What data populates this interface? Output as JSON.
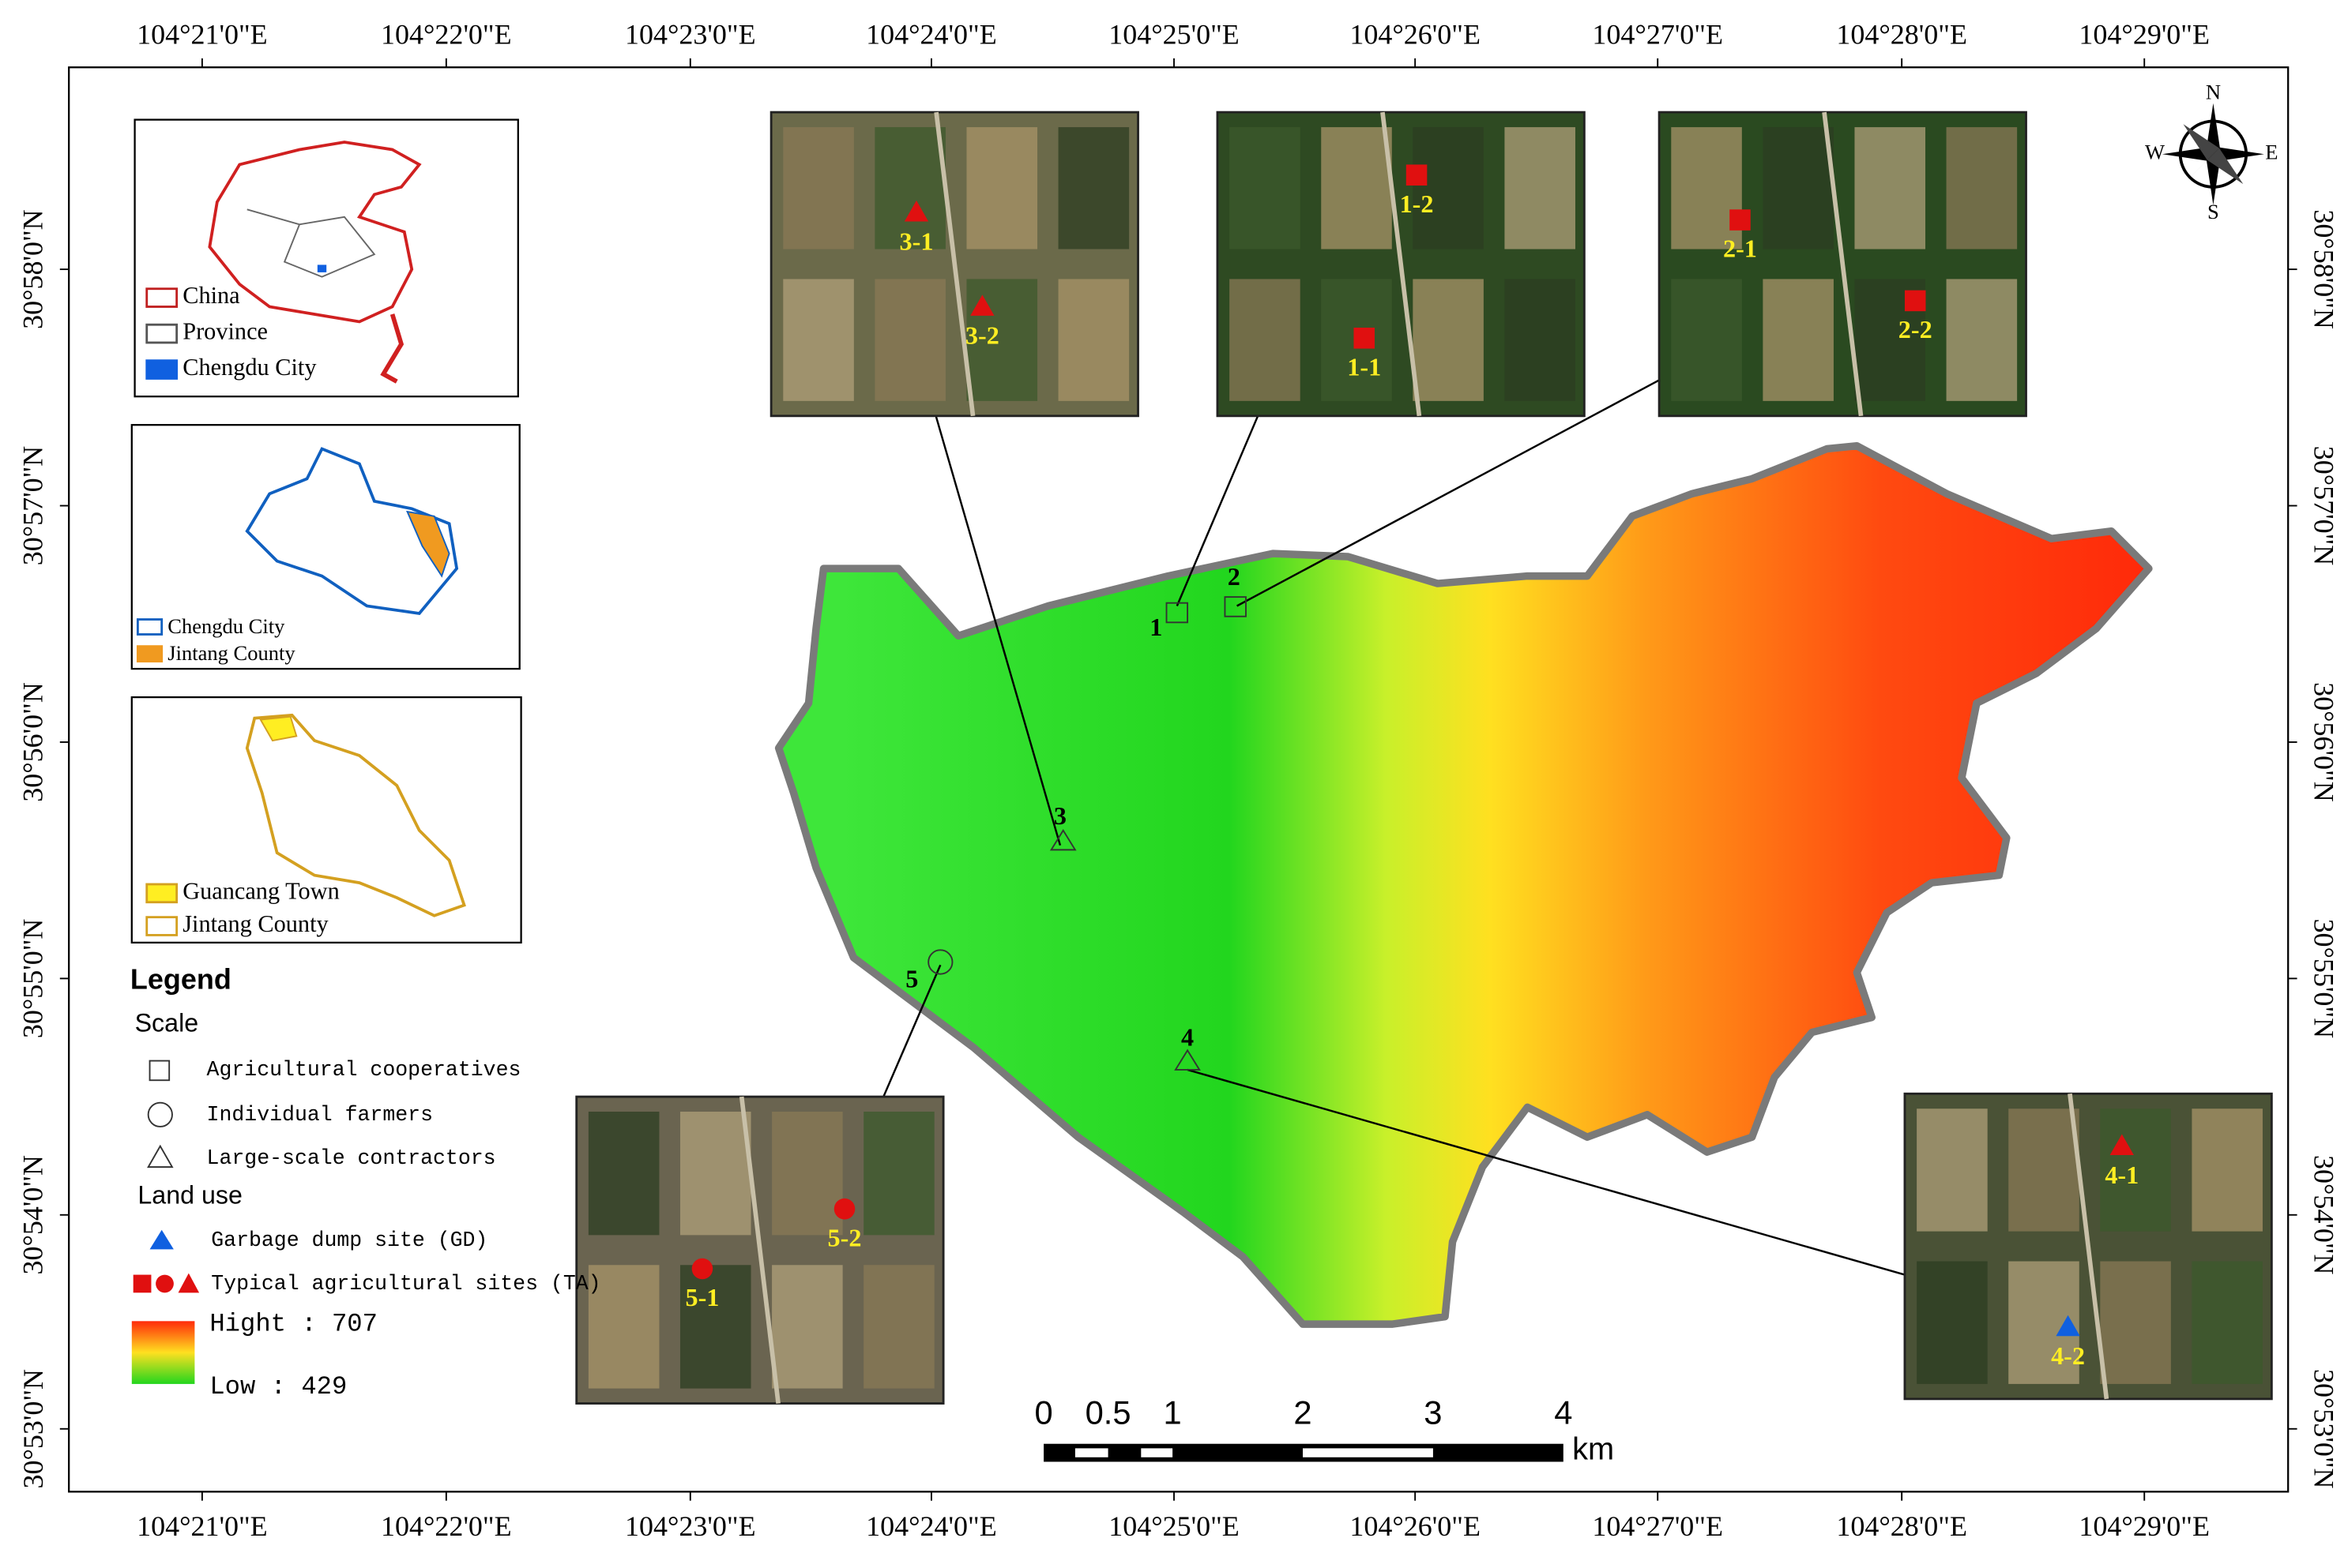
{
  "frame": {
    "lon_labels": [
      "104°21'0\"E",
      "104°22'0\"E",
      "104°23'0\"E",
      "104°24'0\"E",
      "104°25'0\"E",
      "104°26'0\"E",
      "104°27'0\"E",
      "104°28'0\"E",
      "104°29'0\"E"
    ],
    "lat_labels": [
      "30°58'0\"N",
      "30°57'0\"N",
      "30°56'0\"N",
      "30°55'0\"N",
      "30°54'0\"N",
      "30°53'0\"N"
    ]
  },
  "compass": {
    "n": "N",
    "e": "E",
    "s": "S",
    "w": "W"
  },
  "insets": [
    {
      "items": [
        "China",
        "Province",
        "Chengdu City"
      ]
    },
    {
      "items": [
        "Chengdu City",
        "Jintang County"
      ]
    },
    {
      "items": [
        "Guancang Town",
        "Jintang County"
      ]
    }
  ],
  "legend": {
    "title": "Legend",
    "scale_title": "Scale",
    "scale_items": [
      "Agricultural cooperatives",
      "Individual farmers",
      "Large-scale contractors"
    ],
    "land_use_title": "Land use",
    "land_use_items": [
      "Garbage dump site (GD)",
      "Typical agricultural sites (TA)"
    ],
    "high": "Hight : 707",
    "low": "Low : 429"
  },
  "sites": [
    "1",
    "2",
    "3",
    "4",
    "5"
  ],
  "photos": [
    {
      "labels": [
        "3-1",
        "3-2"
      ]
    },
    {
      "labels": [
        "1-2",
        "1-1"
      ]
    },
    {
      "labels": [
        "2-1",
        "2-2"
      ]
    },
    {
      "labels": [
        "5-2",
        "5-1"
      ]
    },
    {
      "labels": [
        "4-1",
        "4-2"
      ]
    }
  ],
  "scale_bar": {
    "labels": [
      "0",
      "0.5",
      "1",
      "2",
      "3",
      "4"
    ],
    "unit": "km"
  }
}
